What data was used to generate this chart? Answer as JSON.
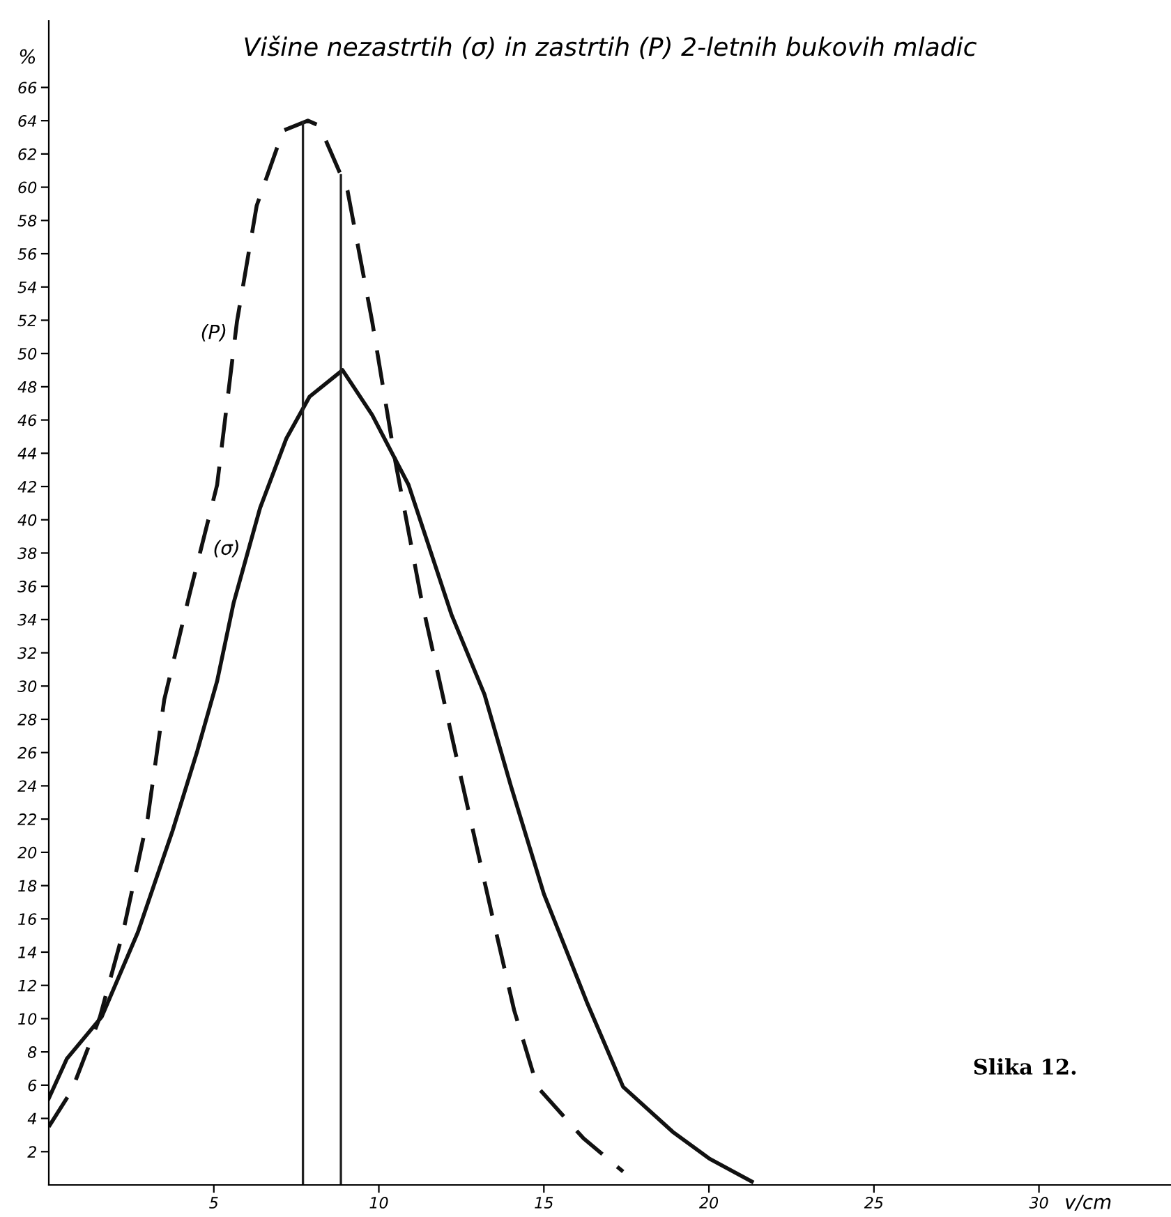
{
  "chart_data": {
    "type": "line",
    "title": "Višine nezastrtih (σ) in zastrtih (P) 2-letnih bukovih mladic",
    "xlabel": "v/cm",
    "ylabel": "%",
    "xlim": [
      0,
      34
    ],
    "ylim": [
      0,
      70
    ],
    "xticks": [
      5,
      10,
      15,
      20,
      25,
      30
    ],
    "yticks": [
      2,
      4,
      6,
      8,
      10,
      12,
      14,
      16,
      18,
      20,
      22,
      24,
      26,
      28,
      30,
      32,
      34,
      36,
      38,
      40,
      42,
      44,
      46,
      48,
      50,
      52,
      54,
      56,
      58,
      60,
      62,
      64,
      66
    ],
    "grid": false,
    "legend": false,
    "marker": "none",
    "series": [
      {
        "name": "(P)",
        "color": "#111111",
        "line_style": "dashed",
        "x": [
          0,
          0.7,
          1.55,
          2.25,
          3.0,
          3.5,
          4.25,
          5.1,
          5.7,
          6.3,
          7.1,
          7.85,
          8.2,
          9.05,
          9.8,
          10.5,
          11.3,
          12.5,
          13.4,
          14.1,
          14.8,
          16.2,
          17.4
        ],
        "values": [
          3.5,
          5.7,
          10.1,
          15.2,
          22.1,
          29.2,
          35.4,
          42.1,
          51.9,
          58.9,
          63.4,
          64,
          63.7,
          59.8,
          51.9,
          43.5,
          35.1,
          24.4,
          16.5,
          10.5,
          5.9,
          2.8,
          0.8
        ]
      },
      {
        "name": "(σ)",
        "color": "#111111",
        "line_style": "solid",
        "x": [
          0,
          0.55,
          1.6,
          2.7,
          3.75,
          4.5,
          5.1,
          5.6,
          6.4,
          7.2,
          7.9,
          8.9,
          9.8,
          10.9,
          12.2,
          13.2,
          14,
          15,
          16.3,
          17.4,
          18.9,
          20,
          21.3
        ],
        "values": [
          5.2,
          7.6,
          10.1,
          15.2,
          21.3,
          26.1,
          30.3,
          35,
          40.7,
          44.9,
          47.4,
          49,
          46.3,
          42.1,
          34.3,
          29.5,
          24,
          17.5,
          11,
          5.9,
          3.2,
          1.6,
          0.2
        ]
      }
    ],
    "ref_lines": [
      {
        "axis": "x",
        "value": 7.7,
        "color": "#222222"
      },
      {
        "axis": "x",
        "value": 8.85,
        "color": "#222222"
      }
    ],
    "annotations": [
      "Slika 12."
    ]
  }
}
